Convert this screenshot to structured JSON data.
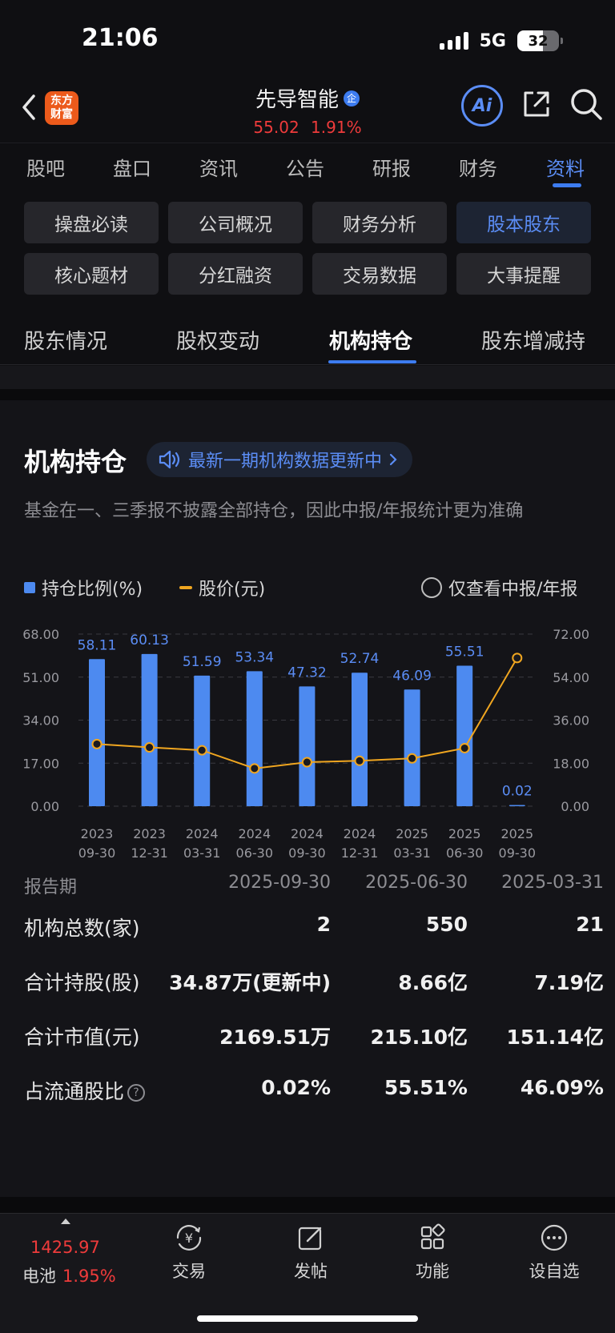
{
  "status_bar": {
    "time": "21:06",
    "network": "5G",
    "battery": "32"
  },
  "header": {
    "logo_line1": "东方",
    "logo_line2": "财富",
    "stock_name": "先导智能",
    "badge": "企",
    "price": "55.02",
    "change_pct": "1.91%",
    "ai_label": "Ai"
  },
  "main_tabs": [
    "股吧",
    "盘口",
    "资讯",
    "公告",
    "研报",
    "财务",
    "资料"
  ],
  "sub_buttons": [
    "操盘必读",
    "公司概况",
    "财务分析",
    "股本股东",
    "核心题材",
    "分红融资",
    "交易数据",
    "大事提醒"
  ],
  "section_tabs": [
    "股东情况",
    "股权变动",
    "机构持仓",
    "股东增减持"
  ],
  "card": {
    "title": "机构持仓",
    "notice": "最新一期机构数据更新中",
    "description": "基金在一、三季报不披露全部持仓，因此中报/年报统计更为准确",
    "legend_bar": "持仓比例(%)",
    "legend_line": "股价(元)",
    "filter_label": "仅查看中报/年报"
  },
  "chart_data": {
    "type": "bar+line",
    "categories": [
      [
        "2023",
        "09-30"
      ],
      [
        "2023",
        "12-31"
      ],
      [
        "2024",
        "03-31"
      ],
      [
        "2024",
        "06-30"
      ],
      [
        "2024",
        "09-30"
      ],
      [
        "2024",
        "12-31"
      ],
      [
        "2025",
        "03-31"
      ],
      [
        "2025",
        "06-30"
      ],
      [
        "2025",
        "09-30"
      ]
    ],
    "bar_series": {
      "name": "持仓比例(%)",
      "values": [
        58.11,
        60.13,
        51.59,
        53.34,
        47.32,
        52.74,
        46.09,
        55.51,
        0.02
      ],
      "labels": [
        "58.11",
        "60.13",
        "51.59",
        "53.34",
        "47.32",
        "52.74",
        "46.09",
        "55.51",
        "0.02"
      ]
    },
    "line_series": {
      "name": "股价(元)",
      "values": [
        26.0,
        24.6,
        23.4,
        15.8,
        18.4,
        19.0,
        20.0,
        24.3,
        62.0
      ]
    },
    "y_left": {
      "ticks": [
        "68.00",
        "51.00",
        "34.00",
        "17.00",
        "0.00"
      ],
      "range": [
        0,
        68
      ]
    },
    "y_right": {
      "ticks": [
        "72.00",
        "54.00",
        "36.00",
        "18.00",
        "0.00"
      ],
      "range": [
        0,
        72
      ]
    },
    "grid": "dashed",
    "colors": {
      "bar": "#4d8af0",
      "line": "#f0a620",
      "label": "#5b8df5"
    }
  },
  "table": {
    "header": [
      "报告期",
      "2025-09-30",
      "2025-06-30",
      "2025-03-31"
    ],
    "rows": [
      {
        "label": "机构总数(家)",
        "values": [
          "2",
          "550",
          "21"
        ]
      },
      {
        "label": "合计持股(股)",
        "values": [
          "34.87万(更新中)",
          "8.66亿",
          "7.19亿"
        ]
      },
      {
        "label": "合计市值(元)",
        "values": [
          "2169.51万",
          "215.10亿",
          "151.14亿"
        ]
      },
      {
        "label": "占流通股比",
        "values": [
          "0.02%",
          "55.51%",
          "46.09%"
        ]
      }
    ]
  },
  "bottom_nav": {
    "index_value": "1425.97",
    "index_name": "电池",
    "index_pct": "1.95%",
    "items": [
      "交易",
      "发帖",
      "功能",
      "设自选"
    ]
  }
}
